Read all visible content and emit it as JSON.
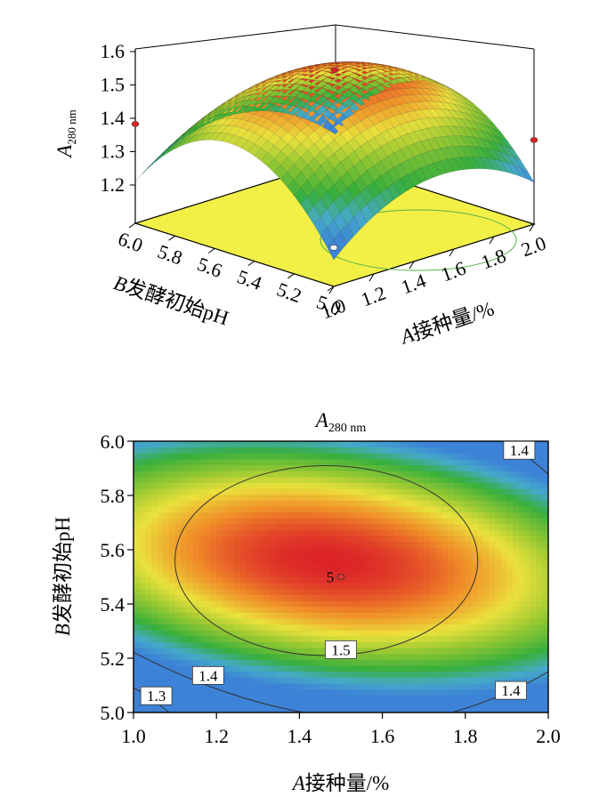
{
  "chart_data": [
    {
      "type": "surface",
      "zlabel_main": "A",
      "zlabel_sub": "280 nm",
      "xlabel_var": "A",
      "xlabel_rest": "接种量/%",
      "ylabel_var": "B",
      "ylabel_rest": "发酵初始pH",
      "x_ticks": [
        "1.0",
        "1.2",
        "1.4",
        "1.6",
        "1.8",
        "2.0"
      ],
      "y_ticks": [
        "5.0",
        "5.2",
        "5.4",
        "5.6",
        "5.8",
        "6.0"
      ],
      "z_ticks": [
        "1.2",
        "1.3",
        "1.4",
        "1.5",
        "1.6"
      ],
      "xlim": [
        1.0,
        2.0
      ],
      "ylim": [
        5.0,
        6.0
      ],
      "zlim": [
        1.15,
        1.6
      ],
      "model": {
        "peak_x": 1.5,
        "peak_y": 5.5,
        "peak_z": 1.57,
        "ax": 0.58,
        "ay": 1.0,
        "axy": -0.1
      },
      "points": [
        {
          "x": 1.5,
          "y": 5.5,
          "z": 1.57
        },
        {
          "x": 1.0,
          "y": 6.0,
          "z": 1.39
        },
        {
          "x": 2.0,
          "y": 5.0,
          "z": 1.34
        },
        {
          "x": 1.0,
          "y": 5.0,
          "z": 1.19
        }
      ],
      "colors": {
        "floor": "#f2f046",
        "low": "#3a8ad8",
        "mid": "#37b83a",
        "high": "#d8222a",
        "point": "#e02020"
      }
    },
    {
      "type": "contour",
      "title_main": "A",
      "title_sub": "280 nm",
      "xlabel_var": "A",
      "xlabel_rest": "接种量/%",
      "ylabel_var": "B",
      "ylabel_rest": "发酵初始pH",
      "x_ticks": [
        "1.0",
        "1.2",
        "1.4",
        "1.6",
        "1.8",
        "2.0"
      ],
      "y_ticks": [
        "5.0",
        "5.2",
        "5.4",
        "5.6",
        "5.8",
        "6.0"
      ],
      "xlim": [
        1.0,
        2.0
      ],
      "ylim": [
        5.0,
        6.0
      ],
      "levels": [
        {
          "label": "1.5",
          "value": 1.5
        },
        {
          "label": "1.4",
          "value": 1.4
        },
        {
          "label": "1.4",
          "value": 1.4
        },
        {
          "label": "1.4",
          "value": 1.4
        },
        {
          "label": "1.3",
          "value": 1.3
        }
      ],
      "center_label": "5",
      "center_point": {
        "x": 1.5,
        "y": 5.5
      }
    }
  ]
}
